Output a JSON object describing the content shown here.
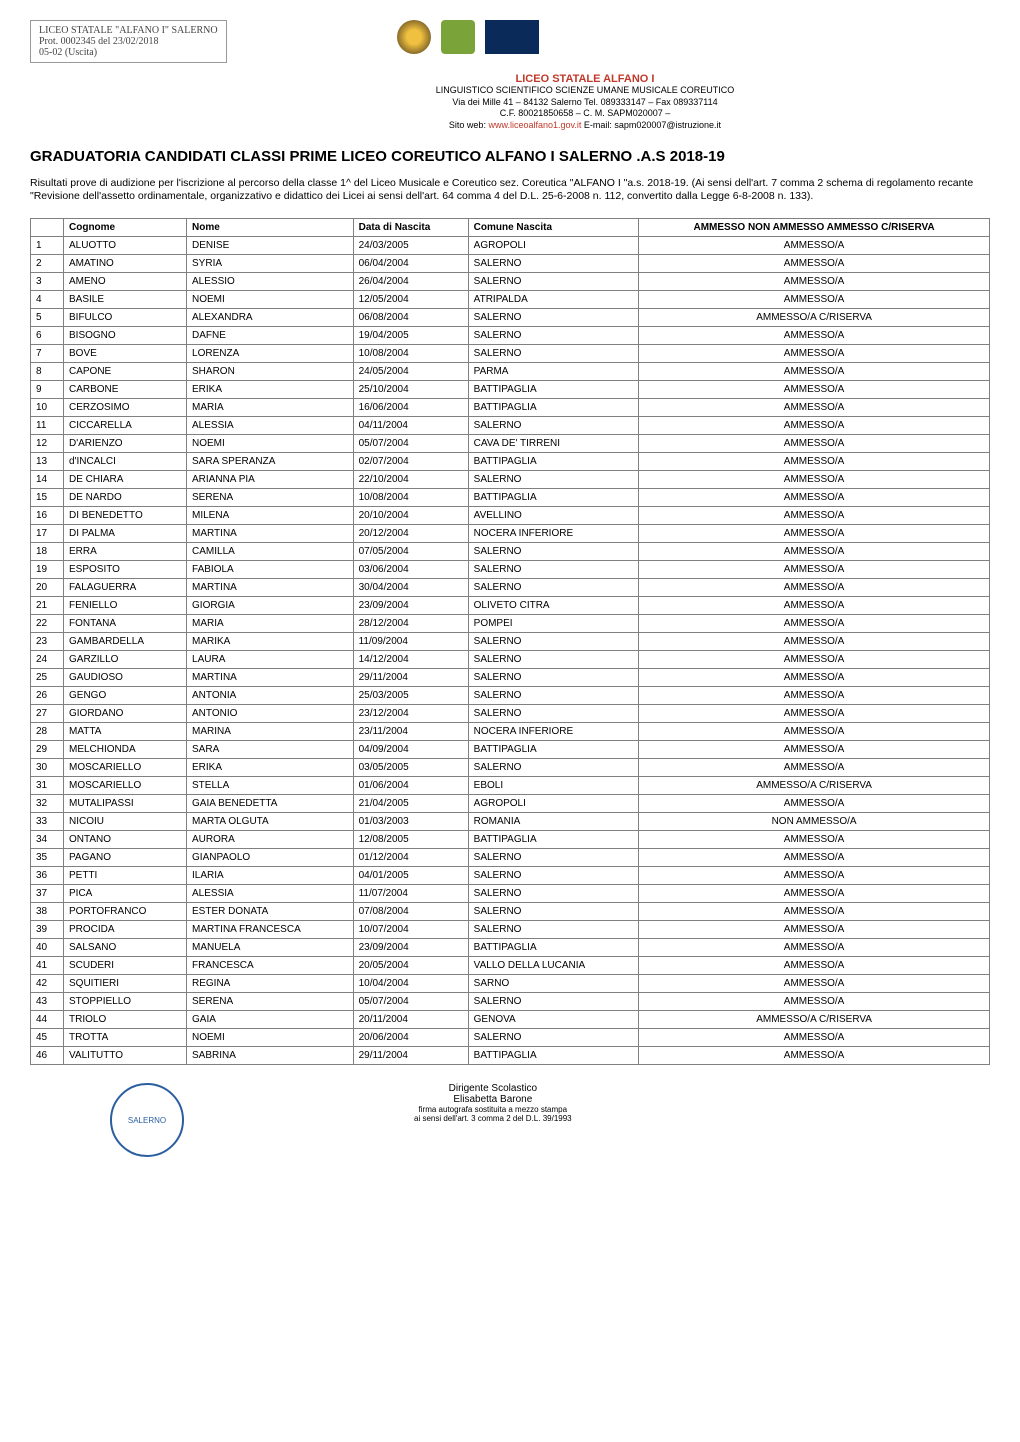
{
  "prot_box": {
    "line1": "LICEO STATALE \"ALFANO I\" SALERNO",
    "line2": "Prot. 0002345 del 23/02/2018",
    "line3": "05-02 (Uscita)"
  },
  "center": {
    "red_title": "LICEO STATALE ALFANO I",
    "line1": "LINGUISTICO SCIENTIFICO SCIENZE UMANE MUSICALE COREUTICO",
    "line2": "Via dei Mille 41 – 84132 Salerno Tel. 089333147 – Fax 089337114",
    "line3": "C.F. 80021850658 – C. M. SAPM020007 –",
    "line4_pre": "Sito web: ",
    "line4_link": "www.liceoalfano1.gov.it",
    "line4_post": "   E-mail: sapm020007@istruzione.it"
  },
  "main_title": "GRADUATORIA CANDIDATI CLASSI PRIME LICEO COREUTICO   ALFANO I SALERNO .A.S 2018-19",
  "intro": "Risultati prove di audizione per l'iscrizione al percorso della classe 1^ del Liceo Musicale e Coreutico sez. Coreutica  \"ALFANO I \"a.s. 2018-19. (Ai sensi dell'art. 7 comma 2 schema di regolamento recante \"Revisione dell'assetto ordinamentale, organizzativo e didattico dei Licei ai sensi dell'art. 64 comma 4 del D.L. 25-6-2008 n. 112, convertito dalla Legge 6-8-2008 n. 133).",
  "table": {
    "columns": [
      "",
      "Cognome",
      "Nome",
      "Data di Nascita",
      "Comune Nascita",
      "AMMESSO NON AMMESSO AMMESSO C/RISERVA"
    ],
    "rows": [
      [
        "1",
        "ALUOTTO",
        "DENISE",
        "24/03/2005",
        "AGROPOLI",
        "AMMESSO/A"
      ],
      [
        "2",
        "AMATINO",
        "SYRIA",
        "06/04/2004",
        "SALERNO",
        "AMMESSO/A"
      ],
      [
        "3",
        "AMENO",
        "ALESSIO",
        "26/04/2004",
        "SALERNO",
        "AMMESSO/A"
      ],
      [
        "4",
        "BASILE",
        "NOEMI",
        "12/05/2004",
        "ATRIPALDA",
        "AMMESSO/A"
      ],
      [
        "5",
        "BIFULCO",
        "ALEXANDRA",
        "06/08/2004",
        "SALERNO",
        "AMMESSO/A C/RISERVA"
      ],
      [
        "6",
        "BISOGNO",
        "DAFNE",
        "19/04/2005",
        "SALERNO",
        "AMMESSO/A"
      ],
      [
        "7",
        "BOVE",
        "LORENZA",
        "10/08/2004",
        "SALERNO",
        "AMMESSO/A"
      ],
      [
        "8",
        "CAPONE",
        "SHARON",
        "24/05/2004",
        "PARMA",
        "AMMESSO/A"
      ],
      [
        "9",
        "CARBONE",
        "ERIKA",
        "25/10/2004",
        "BATTIPAGLIA",
        "AMMESSO/A"
      ],
      [
        "10",
        "CERZOSIMO",
        "MARIA",
        "16/06/2004",
        "BATTIPAGLIA",
        "AMMESSO/A"
      ],
      [
        "11",
        "CICCARELLA",
        "ALESSIA",
        "04/11/2004",
        "SALERNO",
        "AMMESSO/A"
      ],
      [
        "12",
        "D'ARIENZO",
        "NOEMI",
        "05/07/2004",
        "CAVA DE' TIRRENI",
        "AMMESSO/A"
      ],
      [
        "13",
        "d'INCALCI",
        "SARA SPERANZA",
        "02/07/2004",
        "BATTIPAGLIA",
        "AMMESSO/A"
      ],
      [
        "14",
        "DE CHIARA",
        "ARIANNA PIA",
        "22/10/2004",
        "SALERNO",
        "AMMESSO/A"
      ],
      [
        "15",
        "DE NARDO",
        "SERENA",
        "10/08/2004",
        "BATTIPAGLIA",
        "AMMESSO/A"
      ],
      [
        "16",
        "DI BENEDETTO",
        "MILENA",
        "20/10/2004",
        "AVELLINO",
        "AMMESSO/A"
      ],
      [
        "17",
        "DI PALMA",
        "MARTINA",
        "20/12/2004",
        "NOCERA INFERIORE",
        "AMMESSO/A"
      ],
      [
        "18",
        "ERRA",
        "CAMILLA",
        "07/05/2004",
        "SALERNO",
        "AMMESSO/A"
      ],
      [
        "19",
        "ESPOSITO",
        "FABIOLA",
        "03/06/2004",
        "SALERNO",
        "AMMESSO/A"
      ],
      [
        "20",
        "FALAGUERRA",
        "MARTINA",
        "30/04/2004",
        "SALERNO",
        "AMMESSO/A"
      ],
      [
        "21",
        "FENIELLO",
        "GIORGIA",
        "23/09/2004",
        "OLIVETO CITRA",
        "AMMESSO/A"
      ],
      [
        "22",
        "FONTANA",
        "MARIA",
        "28/12/2004",
        "POMPEI",
        "AMMESSO/A"
      ],
      [
        "23",
        "GAMBARDELLA",
        "MARIKA",
        "11/09/2004",
        "SALERNO",
        "AMMESSO/A"
      ],
      [
        "24",
        "GARZILLO",
        "LAURA",
        "14/12/2004",
        "SALERNO",
        "AMMESSO/A"
      ],
      [
        "25",
        "GAUDIOSO",
        "MARTINA",
        "29/11/2004",
        "SALERNO",
        "AMMESSO/A"
      ],
      [
        "26",
        "GENGO",
        "ANTONIA",
        "25/03/2005",
        "SALERNO",
        "AMMESSO/A"
      ],
      [
        "27",
        "GIORDANO",
        "ANTONIO",
        "23/12/2004",
        "SALERNO",
        "AMMESSO/A"
      ],
      [
        "28",
        "MATTA",
        "MARINA",
        "23/11/2004",
        "NOCERA INFERIORE",
        "AMMESSO/A"
      ],
      [
        "29",
        "MELCHIONDA",
        "SARA",
        "04/09/2004",
        "BATTIPAGLIA",
        "AMMESSO/A"
      ],
      [
        "30",
        "MOSCARIELLO",
        "ERIKA",
        "03/05/2005",
        "SALERNO",
        "AMMESSO/A"
      ],
      [
        "31",
        "MOSCARIELLO",
        "STELLA",
        "01/06/2004",
        "EBOLI",
        "AMMESSO/A C/RISERVA"
      ],
      [
        "32",
        "MUTALIPASSI",
        "GAIA BENEDETTA",
        "21/04/2005",
        "AGROPOLI",
        "AMMESSO/A"
      ],
      [
        "33",
        "NICOIU",
        "MARTA OLGUTA",
        "01/03/2003",
        "ROMANIA",
        "NON AMMESSO/A"
      ],
      [
        "34",
        "ONTANO",
        "AURORA",
        "12/08/2005",
        "BATTIPAGLIA",
        "AMMESSO/A"
      ],
      [
        "35",
        "PAGANO",
        "GIANPAOLO",
        "01/12/2004",
        "SALERNO",
        "AMMESSO/A"
      ],
      [
        "36",
        "PETTI",
        "ILARIA",
        "04/01/2005",
        "SALERNO",
        "AMMESSO/A"
      ],
      [
        "37",
        "PICA",
        "ALESSIA",
        "11/07/2004",
        "SALERNO",
        "AMMESSO/A"
      ],
      [
        "38",
        "PORTOFRANCO",
        "ESTER DONATA",
        "07/08/2004",
        "SALERNO",
        "AMMESSO/A"
      ],
      [
        "39",
        "PROCIDA",
        "MARTINA FRANCESCA",
        "10/07/2004",
        "SALERNO",
        "AMMESSO/A"
      ],
      [
        "40",
        "SALSANO",
        "MANUELA",
        "23/09/2004",
        "BATTIPAGLIA",
        "AMMESSO/A"
      ],
      [
        "41",
        "SCUDERI",
        "FRANCESCA",
        "20/05/2004",
        "VALLO DELLA LUCANIA",
        "AMMESSO/A"
      ],
      [
        "42",
        "SQUITIERI",
        "REGINA",
        "10/04/2004",
        "SARNO",
        "AMMESSO/A"
      ],
      [
        "43",
        "STOPPIELLO",
        "SERENA",
        "05/07/2004",
        "SALERNO",
        "AMMESSO/A"
      ],
      [
        "44",
        "TRIOLO",
        "GAIA",
        "20/11/2004",
        "GENOVA",
        "AMMESSO/A C/RISERVA"
      ],
      [
        "45",
        "TROTTA",
        "NOEMI",
        "20/06/2004",
        "SALERNO",
        "AMMESSO/A"
      ],
      [
        "46",
        "VALITUTTO",
        "SABRINA",
        "29/11/2004",
        "BATTIPAGLIA",
        "AMMESSO/A"
      ]
    ]
  },
  "footer": {
    "stamp_text": "SALERNO",
    "sign_title": "Dirigente Scolastico",
    "sign_name": "Elisabetta Barone",
    "sign_small1": "firma autografa sostituita a mezzo stampa",
    "sign_small2": "ai sensi dell'art. 3 comma 2 del D.L. 39/1993"
  }
}
